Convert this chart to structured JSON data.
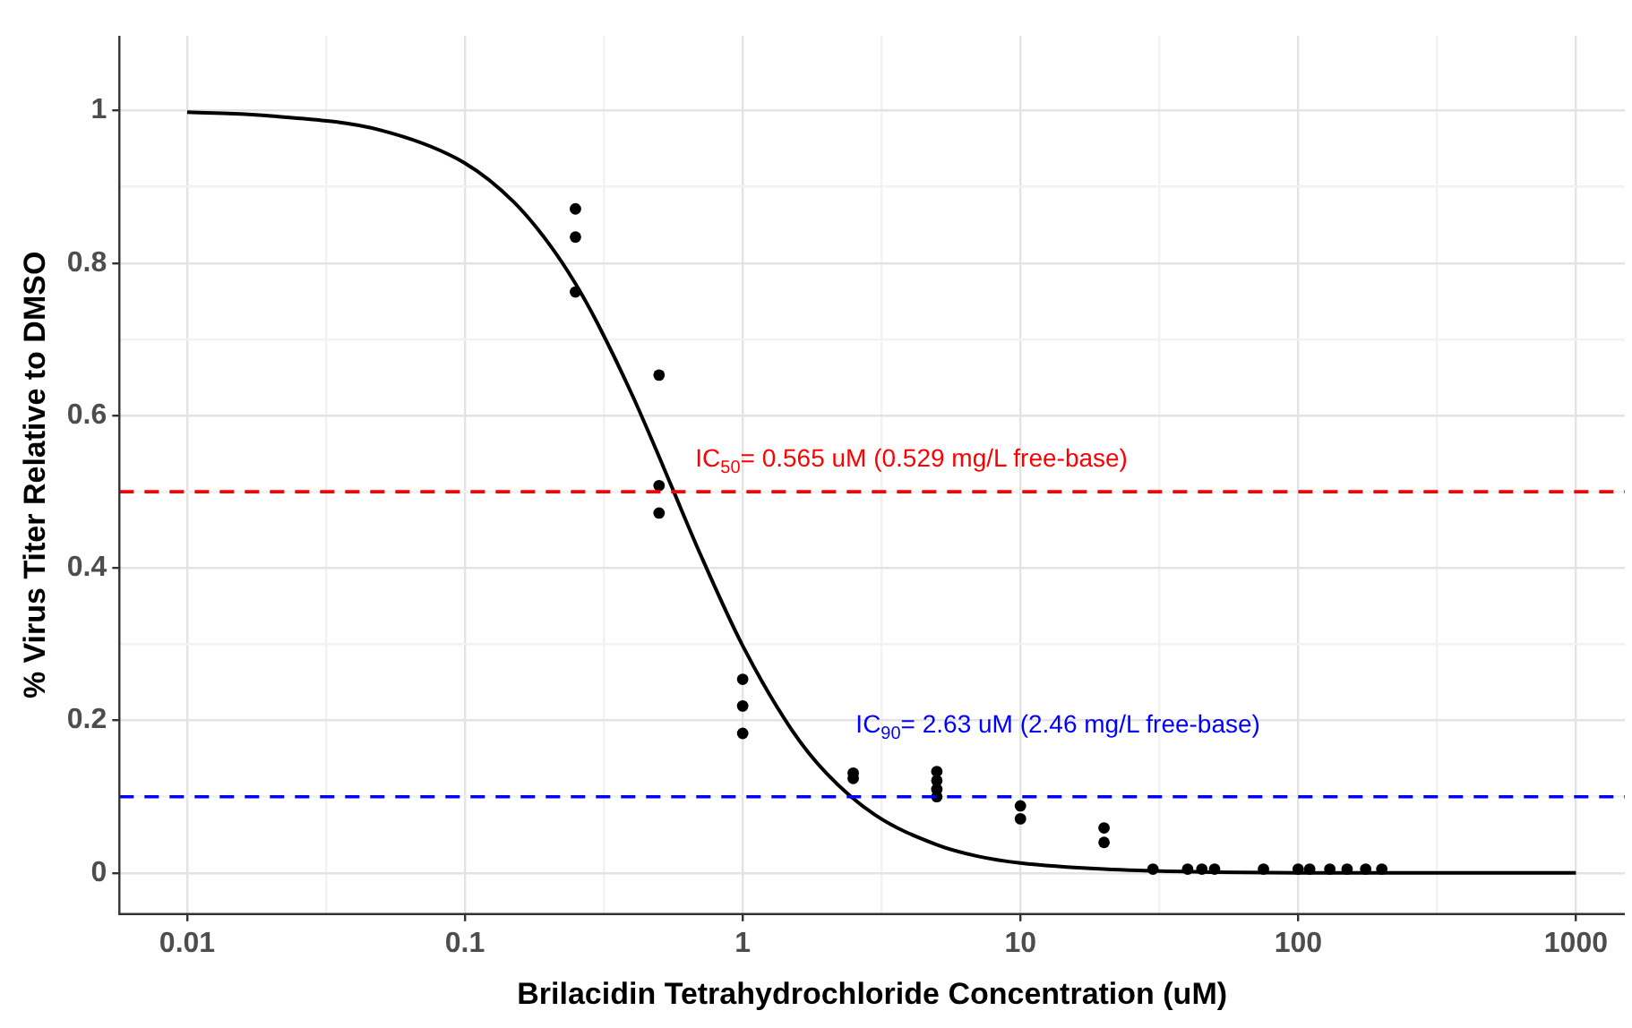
{
  "chart_data": {
    "type": "scatter",
    "xlabel": "Brilacidin Tetrahydrochloride Concentration (uM)",
    "ylabel": "% Virus Titer Relative to DMSO",
    "log": "x",
    "grid": true,
    "legend": false,
    "xlim": [
      0.0057,
      1500
    ],
    "ylim": [
      -0.054,
      1.098
    ],
    "xticks": [
      0.01,
      {
        "value": 0.0316,
        "label": null
      },
      0.1,
      {
        "value": 0.316,
        "label": null
      },
      1,
      {
        "value": 3.16,
        "label": null
      },
      10,
      {
        "value": 31.6,
        "label": null
      },
      100,
      {
        "value": 316,
        "label": null
      },
      1000
    ],
    "yticks": [
      0,
      {
        "value": 0.1,
        "label": null
      },
      {
        "value": 0.2,
        "label": "0.2"
      },
      {
        "value": 0.3,
        "label": null
      },
      {
        "value": 0.4,
        "label": "0.4"
      },
      {
        "value": 0.5,
        "label": null
      },
      {
        "value": 0.6,
        "label": "0.6"
      },
      {
        "value": 0.7,
        "label": null
      },
      {
        "value": 0.8,
        "label": "0.8"
      },
      {
        "value": 0.9,
        "label": null
      },
      1
    ],
    "series": [
      {
        "marker": "circle",
        "color": "#000000",
        "x": [
          0.25,
          0.25,
          0.25,
          0.5,
          0.5,
          0.5,
          1,
          1,
          1,
          2.5,
          2.5,
          5,
          5,
          5,
          5,
          10,
          10,
          20,
          20,
          30,
          40,
          45,
          50,
          75,
          100,
          110,
          130,
          150,
          175,
          200
        ],
        "values": [
          0.871,
          0.834,
          0.762,
          0.653,
          0.508,
          0.472,
          0.254,
          0.219,
          0.183,
          0.131,
          0.124,
          0.133,
          0.121,
          0.11,
          0.1,
          0.088,
          0.071,
          0.059,
          0.04,
          0.005,
          0.005,
          0.005,
          0.005,
          0.005,
          0.005,
          0.005,
          0.005,
          0.005,
          0.005,
          0.005
        ]
      },
      {
        "type": "line",
        "marker": "none",
        "line_style": "solid",
        "color": "#000000",
        "x": [
          0.01,
          0.02,
          0.05,
          0.1,
          0.15,
          0.2,
          0.25,
          0.3,
          0.4,
          0.5,
          0.565,
          0.7,
          1,
          1.5,
          2,
          3,
          5,
          7,
          10,
          20,
          50,
          100,
          1000
        ],
        "values": [
          0.998,
          0.993,
          0.974,
          0.931,
          0.88,
          0.826,
          0.773,
          0.721,
          0.627,
          0.546,
          0.5,
          0.42,
          0.298,
          0.188,
          0.131,
          0.076,
          0.037,
          0.022,
          0.013,
          0.005,
          0.001,
          0,
          0
        ]
      }
    ],
    "ref_lines": [
      {
        "axis": "y",
        "value": 0.5,
        "color": "#ff0000",
        "line_style": "dashed"
      },
      {
        "axis": "y",
        "value": 0.1,
        "color": "#0000ff",
        "line_style": "dashed"
      }
    ],
    "annotations": [
      {
        "text": "IC$_{50}$= 0.565 uM (0.529 mg/L free-base)",
        "x": 0.565,
        "y": 0.5
      },
      {
        "text": "IC$_{90}$= 2.63 uM (2.46 mg/L free-base)",
        "x": 2.63,
        "y": 0.1
      }
    ]
  }
}
